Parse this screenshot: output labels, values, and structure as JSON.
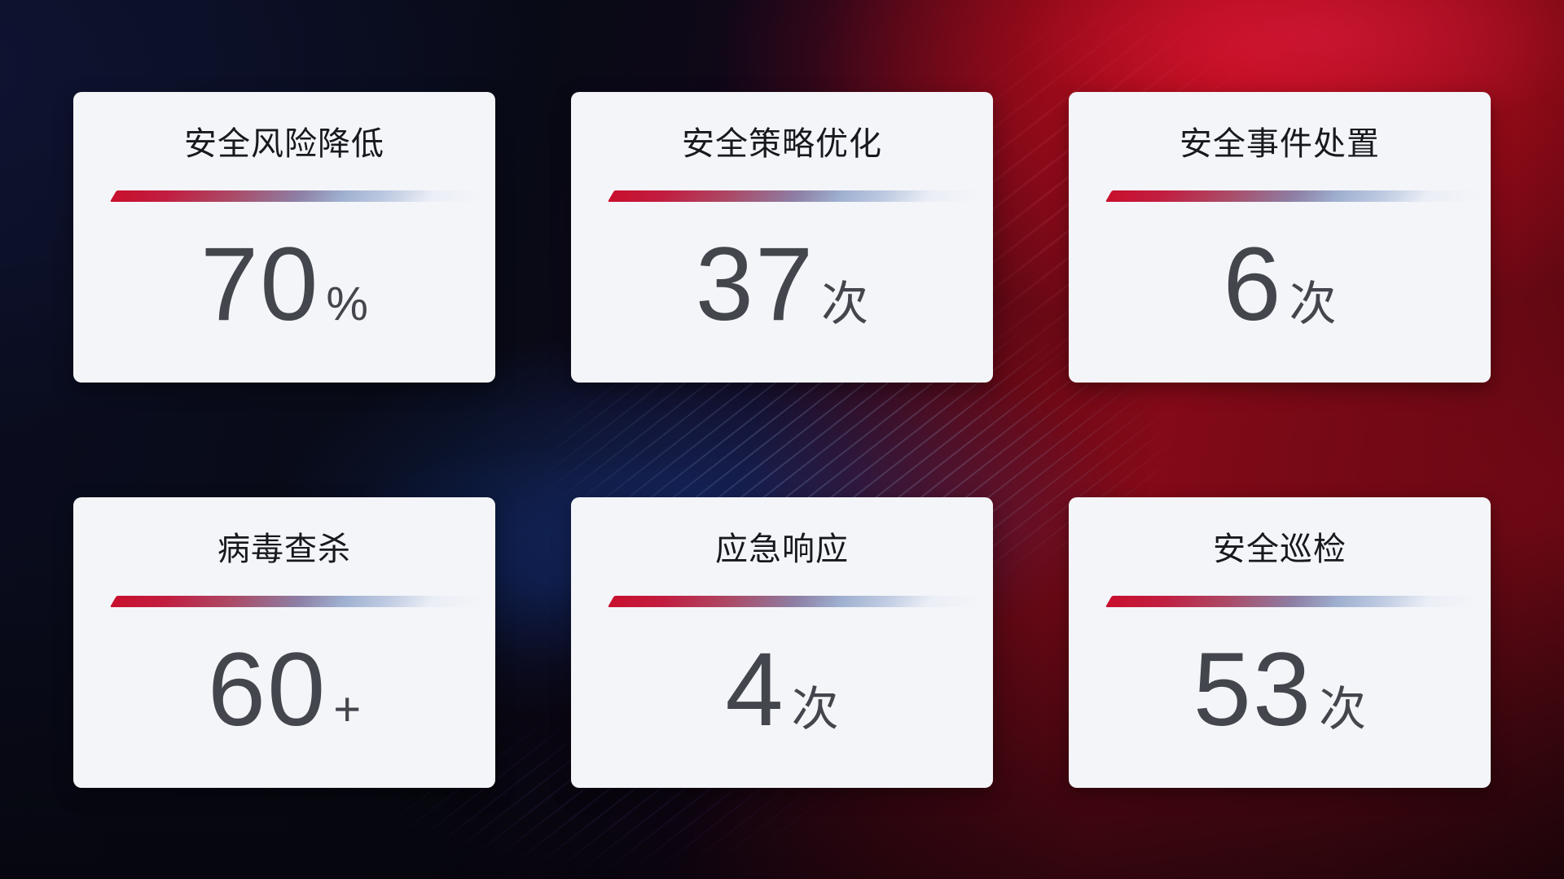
{
  "cards": [
    {
      "title": "安全风险降低",
      "value": "70",
      "unit": "%"
    },
    {
      "title": "安全策略优化",
      "value": "37",
      "unit": "次"
    },
    {
      "title": "安全事件处置",
      "value": "6",
      "unit": "次"
    },
    {
      "title": "病毒查杀",
      "value": "60",
      "unit": "+"
    },
    {
      "title": "应急响应",
      "value": "4",
      "unit": "次"
    },
    {
      "title": "安全巡检",
      "value": "53",
      "unit": "次"
    }
  ],
  "colors": {
    "card_background": "#f4f5f9",
    "title_text": "#17191e",
    "value_text": "#43464c",
    "divider_gradient_start": "#c8102e",
    "divider_gradient_end": "#bfcbe2",
    "background_navy": "#0a0d1f",
    "background_red_bright": "#a30c1a",
    "background_red_dark": "#3a060c",
    "background_blue_glow": "#18409 8"
  }
}
